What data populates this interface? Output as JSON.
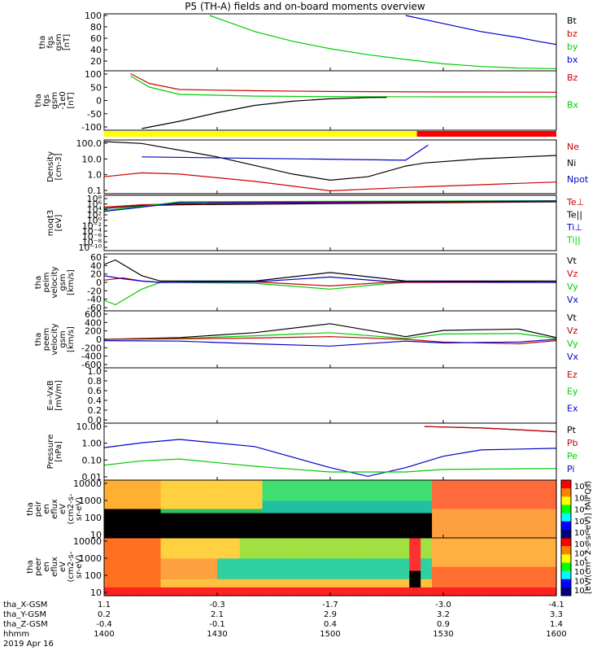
{
  "title": "P5 (TH-A) fields and on-board moments overview",
  "panels": [
    {
      "id": "fgs_gsm",
      "ylabel": [
        "tha",
        "fgs",
        "gsm",
        "[nT]"
      ],
      "ticks": [
        "20",
        "40",
        "60",
        "80",
        "100"
      ],
      "legend": [
        {
          "t": "Bt",
          "c": "#000000"
        },
        {
          "t": "bz",
          "c": "#cc0000"
        },
        {
          "t": "by",
          "c": "#00cc00"
        },
        {
          "t": "bx",
          "c": "#0000cc"
        }
      ]
    },
    {
      "id": "fgs_gsm_tm",
      "ylabel": [
        "tha",
        "fgs",
        "gsm",
        "-1e0",
        "[nT]"
      ],
      "ticks": [
        "100",
        "50",
        "0",
        "-50",
        "-100"
      ],
      "legend": [
        {
          "t": "Bz",
          "c": "#cc0000"
        },
        {
          "t": "Bx",
          "c": "#00cc00"
        }
      ]
    },
    {
      "id": "density",
      "ylabel": [
        "Density",
        "[cm-3]"
      ],
      "ticks": [
        "100.0",
        "10.0",
        "1.0",
        "0.1"
      ],
      "legend": [
        {
          "t": "Ne",
          "c": "#cc0000"
        },
        {
          "t": "Ni",
          "c": "#000000"
        },
        {
          "t": "Npot",
          "c": "#0000cc"
        }
      ]
    },
    {
      "id": "temp",
      "ylabel": [
        "moqt3",
        "[eV]"
      ],
      "ticks": [
        "10⁸",
        "10⁶",
        "10⁴",
        "10²",
        "10⁰",
        "10⁻²",
        "10⁻⁴",
        "10⁻⁶",
        "10⁻⁸",
        "10⁻¹⁰"
      ],
      "legend": [
        {
          "t": "Te⊥",
          "c": "#cc0000"
        },
        {
          "t": "Te||",
          "c": "#000000"
        },
        {
          "t": "Ti⊥",
          "c": "#0000cc"
        },
        {
          "t": "Ti||",
          "c": "#00cc00"
        }
      ]
    },
    {
      "id": "peim",
      "ylabel": [
        "tha",
        "peim",
        "velocity",
        "gsm",
        "[km/s]"
      ],
      "ticks": [
        "60",
        "40",
        "20",
        "0",
        "-20",
        "-40",
        "-60"
      ],
      "legend": [
        {
          "t": "Vt",
          "c": "#000000"
        },
        {
          "t": "Vz",
          "c": "#cc0000"
        },
        {
          "t": "Vy",
          "c": "#00cc00"
        },
        {
          "t": "Vx",
          "c": "#0000cc"
        }
      ]
    },
    {
      "id": "peem",
      "ylabel": [
        "tha",
        "peem",
        "velocity",
        "gsm",
        "[km/s]"
      ],
      "ticks": [
        "600",
        "400",
        "200",
        "0",
        "-200",
        "-400",
        "-600"
      ],
      "legend": [
        {
          "t": "Vt",
          "c": "#000000"
        },
        {
          "t": "Vz",
          "c": "#cc0000"
        },
        {
          "t": "Vy",
          "c": "#00cc00"
        },
        {
          "t": "Vx",
          "c": "#0000cc"
        }
      ]
    },
    {
      "id": "efield",
      "ylabel": [
        "E=-VxB",
        "[mV/m]"
      ],
      "ticks": [
        "1.0",
        "0.8",
        "0.6",
        "0.4",
        "0.2",
        "0.0"
      ],
      "legend": [
        {
          "t": "Ez",
          "c": "#cc0000"
        },
        {
          "t": "Ey",
          "c": "#00cc00"
        },
        {
          "t": "Ex",
          "c": "#0000cc"
        }
      ]
    },
    {
      "id": "pressure",
      "ylabel": [
        "Pressure",
        "[nPa]"
      ],
      "ticks": [
        "10.00",
        "1.00",
        "0.10",
        "0.01"
      ],
      "legend": [
        {
          "t": "Pt",
          "c": "#000000"
        },
        {
          "t": "Pb",
          "c": "#cc0000"
        },
        {
          "t": "Pe",
          "c": "#00cc00"
        },
        {
          "t": "Pi",
          "c": "#0000cc"
        }
      ]
    },
    {
      "id": "peir",
      "ylabel": [
        "tha",
        "peir",
        "en",
        "eflux",
        "eV",
        "(cm2-s-",
        "sr-eV)"
      ],
      "ticks": [
        "10000",
        "1000",
        "100",
        "10"
      ],
      "cbticks": [
        "10⁸",
        "10⁶",
        "10⁴",
        "10²",
        "10⁰"
      ],
      "legend": []
    },
    {
      "id": "peer",
      "ylabel": [
        "tha",
        "peer",
        "en",
        "eflux",
        "eV",
        "(cm2-s-",
        "sr-eV)"
      ],
      "ticks": [
        "10000",
        "1000",
        "100",
        "10"
      ],
      "cbticks": [
        "10⁸",
        "10⁶",
        "10⁵",
        "10⁴",
        "10³",
        "10²"
      ],
      "legend": []
    }
  ],
  "colorbar_label": "[eV/(cm^2-s-sr-eV)] (All Qs)",
  "xaxis": {
    "row_labels": [
      "tha_X-GSM",
      "tha_Y-GSM",
      "tha_Z-GSM",
      "hhmm",
      "2019 Apr 16"
    ],
    "columns": [
      [
        "1.1",
        "0.2",
        "-0.4",
        "1400"
      ],
      [
        "-0.3",
        "2.1",
        "-0.1",
        "1430"
      ],
      [
        "-1.7",
        "2.9",
        "0.4",
        "1500"
      ],
      [
        "-3.0",
        "3.2",
        "0.9",
        "1530"
      ],
      [
        "-4.1",
        "3.3",
        "1.4",
        "1600"
      ]
    ]
  },
  "chart_data": {
    "type": "line",
    "title": "P5 (TH-A) fields and on-board moments overview",
    "x_unit": "hhmm (UT), 2019 Apr 16",
    "x_ticks": [
      "1400",
      "1430",
      "1500",
      "1530",
      "1600"
    ],
    "mode_bar": [
      {
        "from": "1400",
        "to": "1523",
        "color": "#ffff00"
      },
      {
        "from": "1523",
        "to": "1600",
        "color": "#ff0000"
      }
    ],
    "panels": [
      {
        "name": "fgs_gsm",
        "ylim": [
          10,
          110
        ],
        "series": [
          {
            "name": "by",
            "color": "#00cc00",
            "x": [
              1428,
              1432,
              1440,
              1450,
              1500,
              1510,
              1520,
              1530,
              1540,
              1550,
              1600
            ],
            "values": [
              110,
              100,
              80,
              62,
              48,
              37,
              28,
              20,
              15,
              12,
              11
            ]
          },
          {
            "name": "bx",
            "color": "#0000cc",
            "x": [
              1520,
              1530,
              1540,
              1550,
              1555,
              1600
            ],
            "values": [
              110,
              95,
              80,
              69,
              62,
              56
            ]
          }
        ]
      },
      {
        "name": "fgs_gsm_tm",
        "ylim": [
          -130,
          100
        ],
        "series": [
          {
            "name": "Bz",
            "color": "#cc0000",
            "x": [
              1407,
              1412,
              1420,
              1440,
              1500,
              1530,
              1600
            ],
            "values": [
              95,
              55,
              30,
              25,
              22,
              20,
              19
            ]
          },
          {
            "name": "Bx",
            "color": "#00cc00",
            "x": [
              1407,
              1412,
              1420,
              1440,
              1500,
              1530,
              1600
            ],
            "values": [
              85,
              40,
              10,
              3,
              1,
              0,
              0
            ]
          },
          {
            "name": "Bt",
            "color": "#000000",
            "x": [
              1410,
              1420,
              1430,
              1440,
              1450,
              1500,
              1510,
              1515
            ],
            "values": [
              -130,
              -100,
              -65,
              -35,
              -18,
              -8,
              -3,
              -2
            ]
          }
        ]
      },
      {
        "name": "density",
        "ylim": [
          0.1,
          200
        ],
        "log": true,
        "series": [
          {
            "name": "Ni",
            "color": "#000000",
            "x": [
              1400,
              1410,
              1430,
              1450,
              1500,
              1510,
              1520,
              1525,
              1540,
              1600
            ],
            "values": [
              200,
              150,
              20,
              1.5,
              0.6,
              1.0,
              5,
              8,
              15,
              25
            ]
          },
          {
            "name": "Npot",
            "color": "#0000cc",
            "x": [
              1410,
              1520,
              1526
            ],
            "values": [
              20,
              12,
              120
            ]
          },
          {
            "name": "Ne",
            "color": "#cc0000",
            "x": [
              1400,
              1410,
              1420,
              1440,
              1500,
              1520,
              1540,
              1600
            ],
            "values": [
              1,
              1.8,
              1.5,
              0.5,
              0.12,
              0.2,
              0.3,
              0.45
            ]
          }
        ]
      },
      {
        "name": "temp",
        "ylim": [
          1e-10,
          100000000.0
        ],
        "log": true,
        "series": [
          {
            "name": "Te||",
            "color": "#000000",
            "x": [
              1400,
              1410,
              1420,
              1600
            ],
            "values": [
              10000.0,
              100000.0,
              200000.0,
              2000000.0
            ]
          },
          {
            "name": "Te⊥",
            "color": "#cc0000",
            "x": [
              1400,
              1410,
              1420,
              1600
            ],
            "values": [
              30000.0,
              200000.0,
              400000.0,
              3000000.0
            ]
          },
          {
            "name": "Ti||",
            "color": "#00cc00",
            "x": [
              1400,
              1410,
              1420,
              1600
            ],
            "values": [
              2000.0,
              50000.0,
              2000000.0,
              5000000.0
            ]
          },
          {
            "name": "Ti⊥",
            "color": "#0000cc",
            "x": [
              1400,
              1410,
              1420,
              1600
            ],
            "values": [
              1000.0,
              30000.0,
              1000000.0,
              4000000.0
            ]
          }
        ]
      },
      {
        "name": "peim",
        "ylim": [
          -60,
          60
        ],
        "series": [
          {
            "name": "Vt",
            "color": "#000000",
            "x": [
              1400,
              1403,
              1410,
              1415,
              1440,
              1500,
              1515,
              1520,
              1600
            ],
            "values": [
              40,
              50,
              15,
              3,
              3,
              22,
              8,
              3,
              3
            ]
          },
          {
            "name": "Vy",
            "color": "#00cc00",
            "x": [
              1400,
              1403,
              1410,
              1415,
              1440,
              1500,
              1515,
              1520,
              1600
            ],
            "values": [
              -40,
              -50,
              -15,
              0,
              -2,
              -15,
              -3,
              0,
              0
            ]
          },
          {
            "name": "Vz",
            "color": "#cc0000",
            "x": [
              1400,
              1405,
              1410,
              1415,
              1440,
              1500,
              1515,
              1600
            ],
            "values": [
              5,
              10,
              3,
              0,
              1,
              -8,
              0,
              0
            ]
          },
          {
            "name": "Vx",
            "color": "#0000cc",
            "x": [
              1400,
              1405,
              1410,
              1415,
              1440,
              1500,
              1515,
              1600
            ],
            "values": [
              15,
              8,
              3,
              0,
              1,
              12,
              2,
              0
            ]
          }
        ]
      },
      {
        "name": "peem",
        "ylim": [
          -600,
          600
        ],
        "series": [
          {
            "name": "Vt",
            "color": "#000000",
            "x": [
              1400,
              1420,
              1440,
              1500,
              1520,
              1530,
              1550,
              1600
            ],
            "values": [
              0,
              40,
              150,
              350,
              60,
              200,
              230,
              40
            ]
          },
          {
            "name": "Vy",
            "color": "#00cc00",
            "x": [
              1400,
              1420,
              1440,
              1500,
              1520,
              1530,
              1550,
              1600
            ],
            "values": [
              0,
              20,
              80,
              150,
              20,
              120,
              130,
              20
            ]
          },
          {
            "name": "Vz",
            "color": "#cc0000",
            "x": [
              1400,
              1420,
              1440,
              1500,
              1520,
              1530,
              1550,
              1600
            ],
            "values": [
              0,
              10,
              30,
              60,
              0,
              -60,
              -100,
              -30
            ]
          },
          {
            "name": "Vx",
            "color": "#0000cc",
            "x": [
              1400,
              1420,
              1440,
              1500,
              1520,
              1530,
              1550,
              1600
            ],
            "values": [
              -30,
              -40,
              -100,
              -150,
              -40,
              -80,
              -60,
              0
            ]
          }
        ]
      },
      {
        "name": "efield",
        "ylim": [
          0,
          1
        ],
        "series": []
      },
      {
        "name": "pressure",
        "ylim": [
          0.007,
          40
        ],
        "log": true,
        "series": [
          {
            "name": "Pt",
            "color": "#000000",
            "x": [
              1525,
              1540,
              1550,
              1600
            ],
            "values": [
              30,
              24,
              18,
              13
            ]
          },
          {
            "name": "Pb",
            "color": "#cc0000",
            "x": [
              1525,
              1540,
              1550,
              1600
            ],
            "values": [
              30,
              24,
              18,
              13
            ]
          },
          {
            "name": "Pi",
            "color": "#0000cc",
            "x": [
              1400,
              1410,
              1420,
              1440,
              1500,
              1510,
              1520,
              1530,
              1540,
              1600
            ],
            "values": [
              1.0,
              2.2,
              3.8,
              1.2,
              0.04,
              0.01,
              0.04,
              0.25,
              0.7,
              0.9
            ]
          },
          {
            "name": "Pe",
            "color": "#00cc00",
            "x": [
              1400,
              1410,
              1420,
              1440,
              1500,
              1520,
              1530,
              1600
            ],
            "values": [
              0.06,
              0.12,
              0.16,
              0.05,
              0.02,
              0.02,
              0.03,
              0.035
            ]
          }
        ]
      }
    ],
    "spectrograms": [
      {
        "name": "peir",
        "ylim": [
          5,
          30000
        ],
        "log": true
      },
      {
        "name": "peer",
        "ylim": [
          5,
          30000
        ],
        "log": true
      }
    ]
  }
}
